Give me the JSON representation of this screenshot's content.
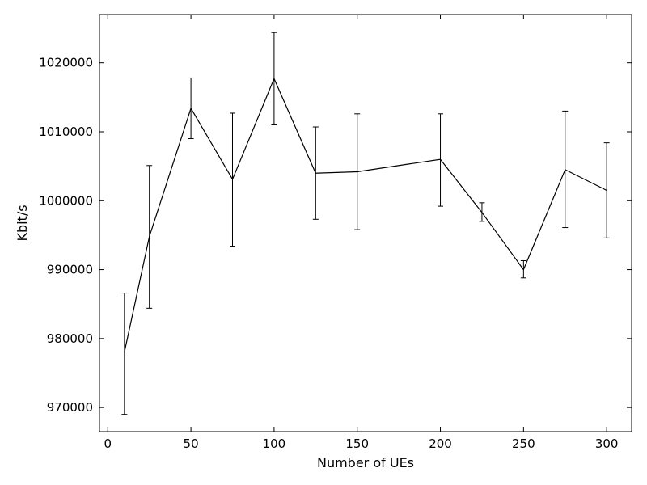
{
  "chart_data": {
    "type": "line",
    "title": "",
    "xlabel": "Number of UEs",
    "ylabel": "Kbit/s",
    "xlim": [
      -5,
      315
    ],
    "ylim": [
      966500,
      1027000
    ],
    "xticks": [
      0,
      50,
      100,
      150,
      200,
      250,
      300
    ],
    "yticks": [
      970000,
      980000,
      990000,
      1000000,
      1010000,
      1020000
    ],
    "xtick_labels": [
      "0",
      "50",
      "100",
      "150",
      "200",
      "250",
      "300"
    ],
    "ytick_labels": [
      "970000",
      "980000",
      "990000",
      "1000000",
      "1010000",
      "1020000"
    ],
    "grid": false,
    "series": [
      {
        "color": "#000000",
        "x": [
          10,
          25,
          50,
          75,
          100,
          125,
          150,
          200,
          225,
          250,
          275,
          300
        ],
        "y": [
          978000,
          994800,
          1013400,
          1003100,
          1017700,
          1004000,
          1004200,
          1006000,
          998300,
          990000,
          1004500,
          1001500
        ],
        "err_low": [
          969000,
          984400,
          1009000,
          993400,
          1011000,
          997300,
          995800,
          999200,
          997000,
          988800,
          996100,
          994600
        ],
        "err_high": [
          986600,
          1005100,
          1017800,
          1012700,
          1024400,
          1010700,
          1012600,
          1012600,
          999700,
          991300,
          1013000,
          1008400
        ]
      }
    ]
  }
}
